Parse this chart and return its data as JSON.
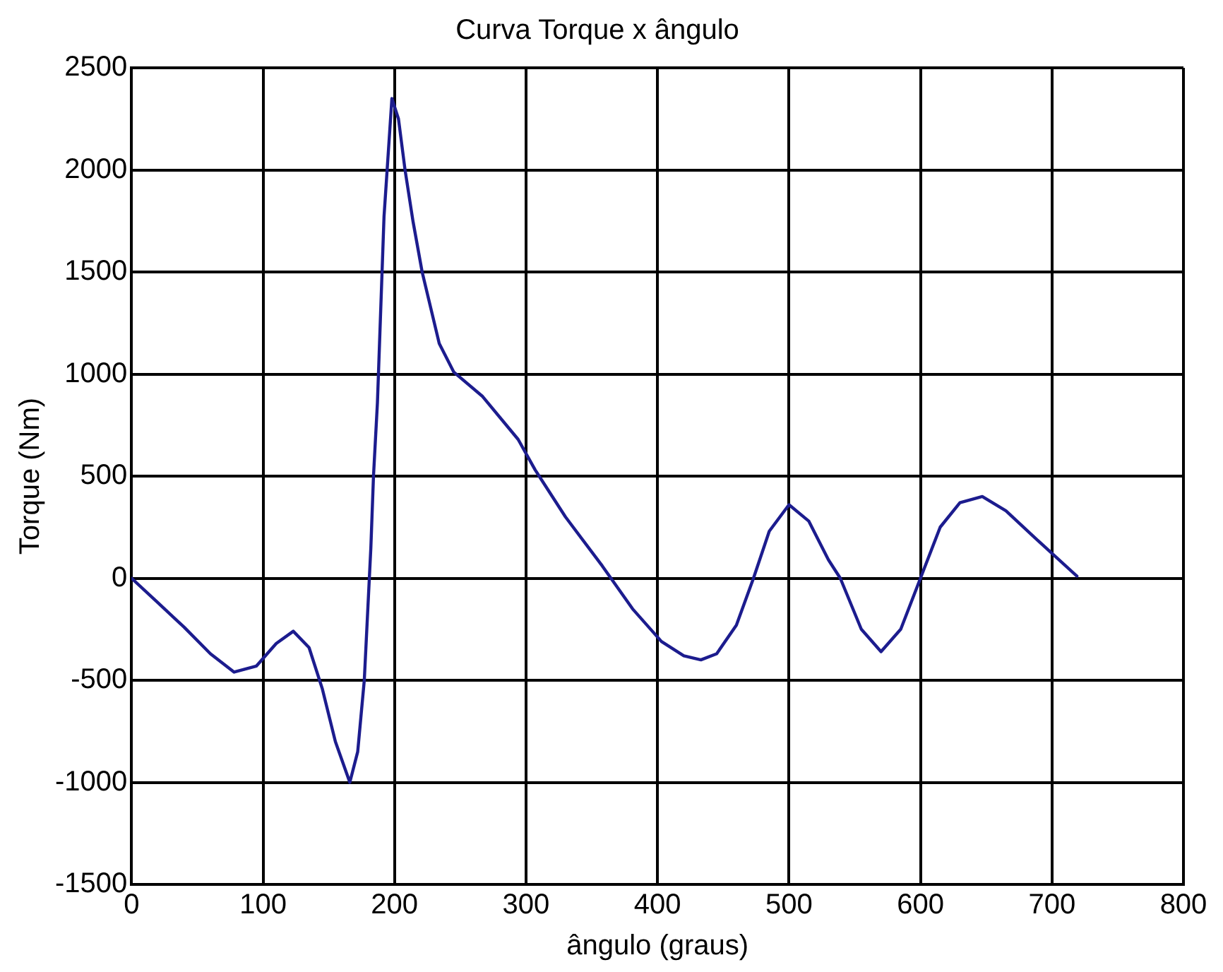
{
  "chart_data": {
    "type": "line",
    "title": "Curva Torque x ângulo",
    "xlabel": "ângulo (graus)",
    "ylabel": "Torque (Nm)",
    "xlim": [
      0,
      800
    ],
    "xticks": [
      0,
      100,
      200,
      300,
      400,
      500,
      600,
      700,
      800
    ],
    "ylim": [
      -1500,
      2500
    ],
    "yticks": [
      -1500,
      -1000,
      -500,
      0,
      500,
      1000,
      1500,
      2000,
      2500
    ],
    "grid": true,
    "legend": false,
    "marker": "none",
    "line_style": "solid",
    "series": [
      {
        "color": "#1c1c8e",
        "x": [
          0,
          20,
          40,
          60,
          78,
          95,
          110,
          123,
          135,
          145,
          155,
          166,
          172,
          177,
          182,
          184,
          187,
          192,
          198,
          203,
          208,
          214,
          221,
          234,
          245,
          267,
          294,
          307,
          330,
          358,
          381,
          403,
          420,
          433,
          445,
          460,
          473,
          485,
          500,
          515,
          530,
          539,
          555,
          570,
          585,
          600,
          615,
          630,
          647,
          665,
          690,
          719
        ],
        "values": [
          0,
          -120,
          -240,
          -370,
          -460,
          -430,
          -320,
          -260,
          -340,
          -540,
          -800,
          -1000,
          -850,
          -500,
          150,
          500,
          860,
          1770,
          2350,
          2250,
          2000,
          1750,
          1500,
          1150,
          1010,
          890,
          680,
          530,
          300,
          60,
          -150,
          -310,
          -380,
          -400,
          -370,
          -230,
          0,
          230,
          360,
          280,
          90,
          0,
          -250,
          -360,
          -250,
          0,
          250,
          370,
          400,
          330,
          180,
          10
        ]
      }
    ]
  }
}
